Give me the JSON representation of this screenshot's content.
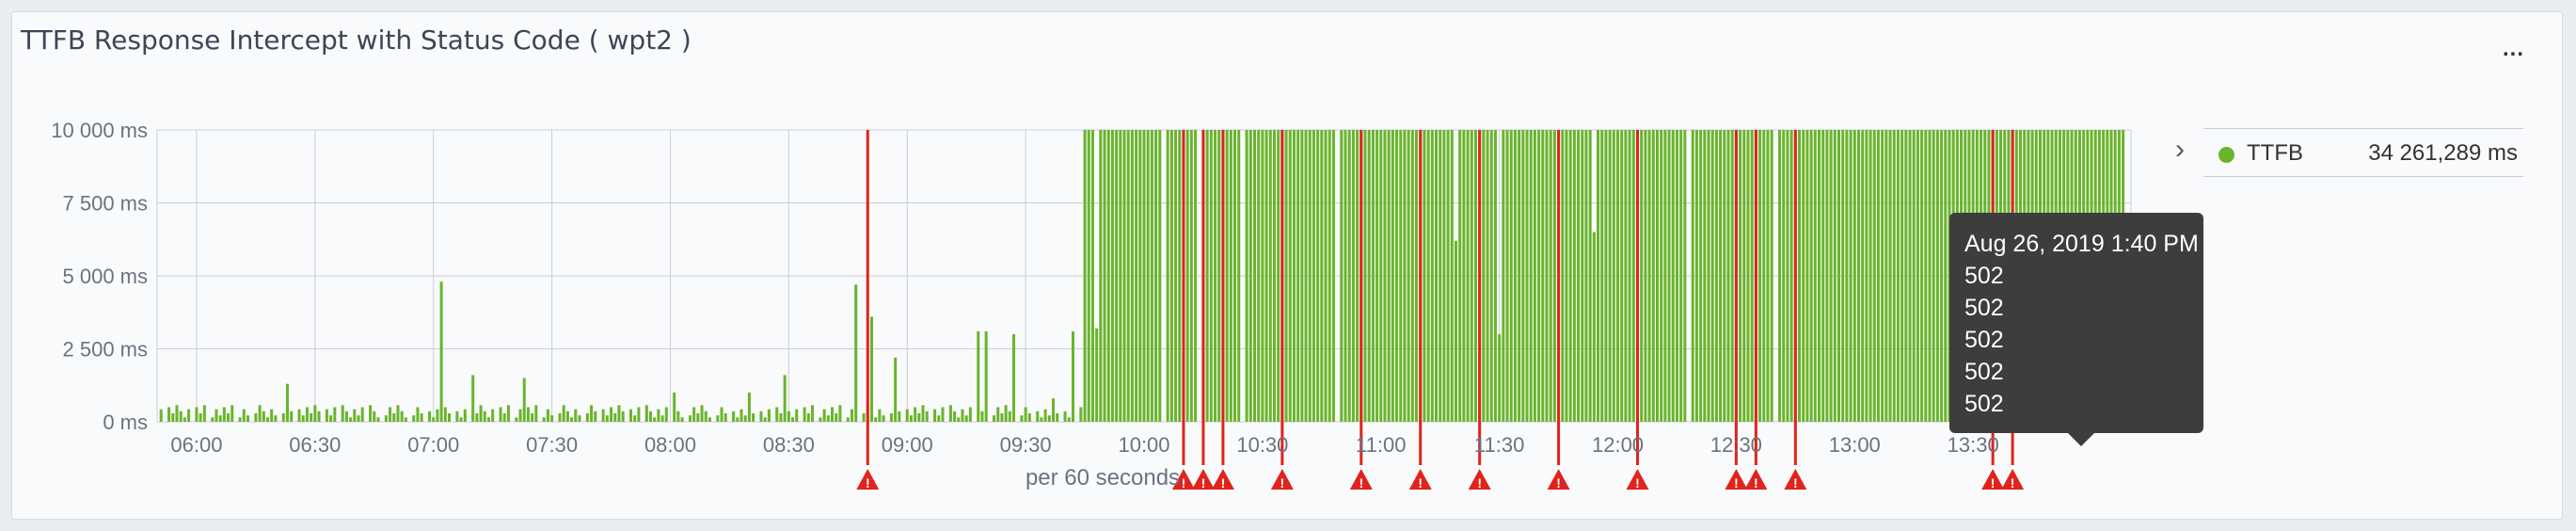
{
  "panel": {
    "title": "TTFB Response Intercept with Status Code ( wpt2 )",
    "menu_label": "..."
  },
  "chart_data": {
    "type": "bar",
    "title": "TTFB Response Intercept with Status Code ( wpt2 )",
    "xlabel": "per 60 seconds",
    "ylabel": "",
    "ylim": [
      0,
      10000
    ],
    "xlim": [
      "05:50",
      "14:10"
    ],
    "grid": true,
    "legend_position": "right",
    "y_ticks": [
      {
        "value": 0,
        "label": "0 ms"
      },
      {
        "value": 2500,
        "label": "2 500 ms"
      },
      {
        "value": 5000,
        "label": "5 000 ms"
      },
      {
        "value": 7500,
        "label": "7 500 ms"
      },
      {
        "value": 10000,
        "label": "10 000 ms"
      }
    ],
    "x_ticks": [
      "06:00",
      "06:30",
      "07:00",
      "07:30",
      "08:00",
      "08:30",
      "09:00",
      "09:30",
      "10:00",
      "10:30",
      "11:00",
      "11:30",
      "12:00",
      "12:30",
      "13:00",
      "13:30"
    ],
    "series": [
      {
        "name": "TTFB",
        "color": "#6ab42c",
        "spikes": [
          {
            "x": "06:23",
            "y": 1300
          },
          {
            "x": "07:02",
            "y": 4800
          },
          {
            "x": "07:10",
            "y": 1600
          },
          {
            "x": "07:23",
            "y": 1500
          },
          {
            "x": "08:01",
            "y": 1000
          },
          {
            "x": "08:20",
            "y": 1000
          },
          {
            "x": "08:29",
            "y": 1600
          },
          {
            "x": "08:47",
            "y": 4700
          },
          {
            "x": "08:51",
            "y": 3600
          },
          {
            "x": "08:57",
            "y": 2200
          },
          {
            "x": "09:18",
            "y": 3100
          },
          {
            "x": "09:20",
            "y": 3100
          },
          {
            "x": "09:27",
            "y": 3000
          },
          {
            "x": "09:37",
            "y": 800
          },
          {
            "x": "09:42",
            "y": 3100
          }
        ],
        "gaps": [
          {
            "x": "09:48",
            "y": 3200
          },
          {
            "x": "10:05",
            "y": 0
          },
          {
            "x": "10:14",
            "y": 0
          },
          {
            "x": "10:25",
            "y": 0
          },
          {
            "x": "10:49",
            "y": 0
          },
          {
            "x": "11:19",
            "y": 6200
          },
          {
            "x": "11:30",
            "y": 3000
          },
          {
            "x": "11:54",
            "y": 6500
          },
          {
            "x": "12:18",
            "y": 0
          },
          {
            "x": "12:40",
            "y": 0
          }
        ]
      }
    ],
    "legend": [
      {
        "name": "TTFB",
        "value": "34 261,289 ms",
        "color": "#6ab42c"
      }
    ],
    "annotations": {
      "color": "#e0231c",
      "times": [
        "08:50",
        "10:10",
        "10:15",
        "10:20",
        "10:35",
        "10:55",
        "11:10",
        "11:25",
        "11:45",
        "12:05",
        "12:30",
        "12:35",
        "12:45",
        "13:35",
        "13:40"
      ],
      "status": "502"
    },
    "tooltip": {
      "date": "Aug 26, 2019 1:40 PM",
      "lines": [
        "502",
        "502",
        "502",
        "502",
        "502"
      ]
    }
  }
}
